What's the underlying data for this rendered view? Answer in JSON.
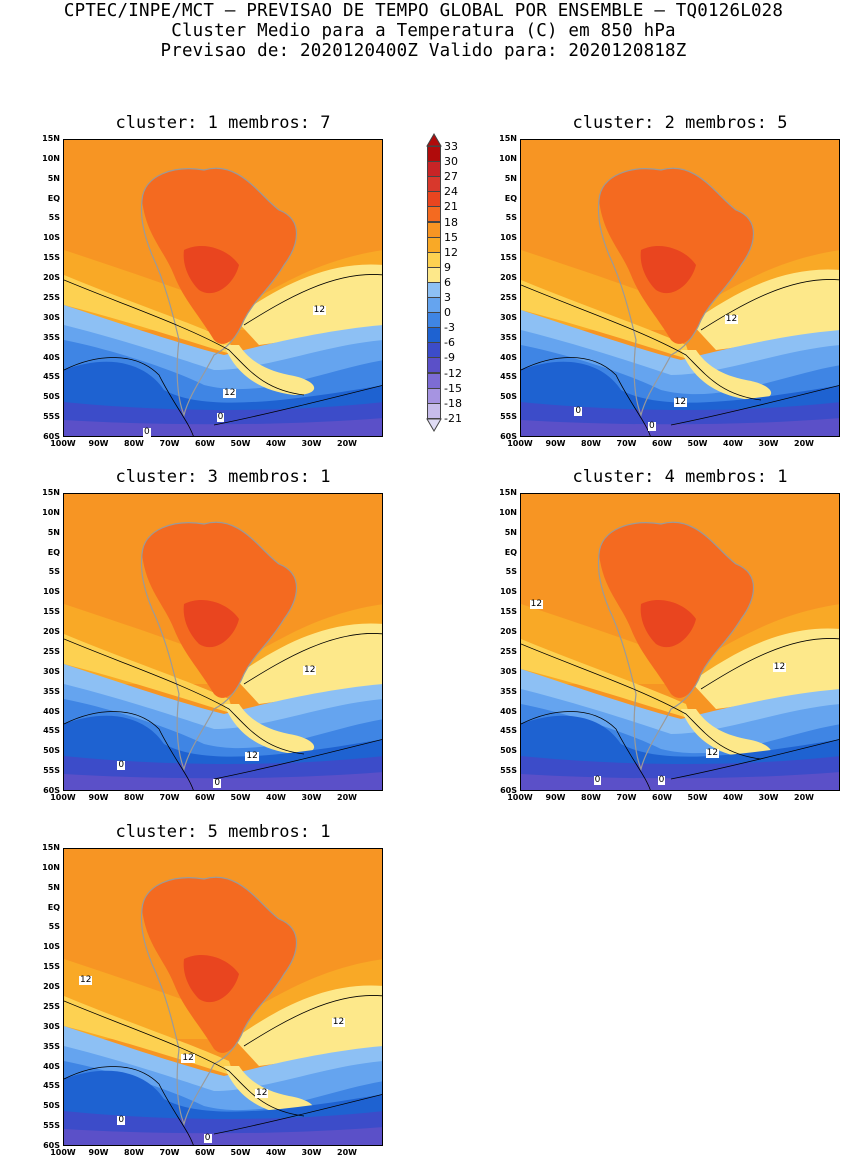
{
  "header": {
    "line1": "CPTEC/INPE/MCT – PREVISAO DE TEMPO GLOBAL POR ENSEMBLE – TQ0126L028",
    "line2": "Cluster Medio para a Temperatura (C) em 850 hPa",
    "line3": "Previsao de: 2020120400Z    Valido para: 2020120818Z"
  },
  "colorbar": {
    "labels": [
      "33",
      "30",
      "27",
      "24",
      "21",
      "18",
      "15",
      "12",
      "9",
      "6",
      "3",
      "0",
      "-3",
      "-6",
      "-9",
      "-12",
      "-15",
      "-18",
      "-21"
    ],
    "colors": [
      "#b00b0b",
      "#c82426",
      "#d8382c",
      "#e9451f",
      "#f46a20",
      "#f79523",
      "#f9a926",
      "#fdd151",
      "#fde88a",
      "#8dc0f4",
      "#65a4ef",
      "#3f85e4",
      "#1e62d1",
      "#3c4cc9",
      "#5b50c8",
      "#7d6cd4",
      "#a694e1",
      "#c7bdeb",
      "#e0dcf4"
    ]
  },
  "lat_labels": [
    "15N",
    "10N",
    "5N",
    "EQ",
    "5S",
    "10S",
    "15S",
    "20S",
    "25S",
    "30S",
    "35S",
    "40S",
    "45S",
    "50S",
    "55S",
    "60S"
  ],
  "lon_labels": [
    "100W",
    "90W",
    "80W",
    "70W",
    "60W",
    "50W",
    "40W",
    "30W",
    "20W"
  ],
  "panels": [
    {
      "title": "cluster: 1   membros: 7",
      "contour_labels": [
        "12",
        "12",
        "0",
        "0"
      ]
    },
    {
      "title": "cluster: 2   membros: 5",
      "contour_labels": [
        "12",
        "12",
        "0",
        "0"
      ]
    },
    {
      "title": "cluster: 3   membros: 1",
      "contour_labels": [
        "12",
        "12",
        "0",
        "0"
      ]
    },
    {
      "title": "cluster: 4   membros: 1",
      "contour_labels": [
        "12",
        "12",
        "12",
        "0",
        "0"
      ]
    },
    {
      "title": "cluster: 5   membros: 1",
      "contour_labels": [
        "12",
        "12",
        "12",
        "12",
        "0",
        "0"
      ]
    }
  ]
}
